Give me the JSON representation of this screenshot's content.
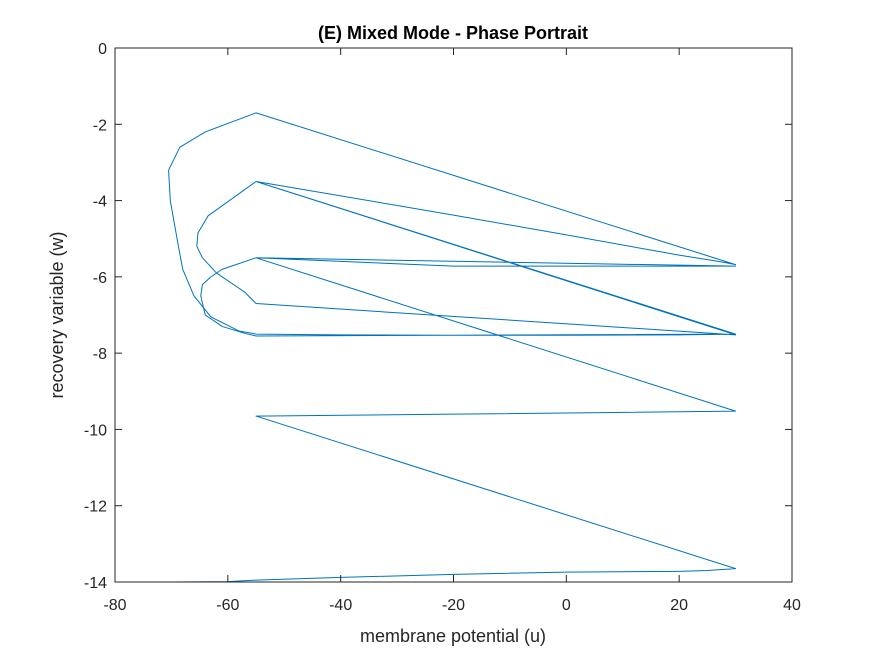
{
  "chart_data": {
    "type": "line",
    "title": "(E) Mixed Mode - Phase Portrait",
    "xlabel": "membrane potential (u)",
    "ylabel": "recovery variable (w)",
    "xlim": [
      -80,
      40
    ],
    "ylim": [
      -14,
      0
    ],
    "xticks": [
      "-80",
      "-60",
      "-40",
      "-20",
      "0",
      "20",
      "40"
    ],
    "yticks": [
      "0",
      "-2",
      "-4",
      "-6",
      "-8",
      "-10",
      "-12",
      "-14"
    ],
    "grid": false,
    "legend": "none",
    "series": [
      {
        "color": "#0072BD",
        "x": [
          -70,
          -60,
          -55,
          -40,
          -20,
          0,
          20,
          25,
          30,
          -55,
          -20,
          30,
          -55,
          -20,
          30,
          -55,
          -61,
          -63,
          -64.5,
          -64.8,
          -64,
          -61,
          -57,
          -55,
          30,
          -55,
          -63.5,
          -65.3,
          -65.5,
          -64.5,
          -62,
          -57,
          -55,
          30,
          -55,
          -20,
          0,
          20,
          28,
          30,
          -55,
          -64,
          -68.5,
          -70.5,
          -70.2,
          -69,
          -68,
          -66,
          -63,
          -58,
          -55,
          -40,
          -20,
          0,
          20,
          30,
          -55,
          30
        ],
        "y": [
          -14,
          -13.99,
          -13.95,
          -13.88,
          -13.8,
          -13.74,
          -13.72,
          -13.7,
          -13.65,
          -9.65,
          -9.6,
          -9.52,
          -5.5,
          -5.72,
          -5.72,
          -5.5,
          -5.8,
          -6.0,
          -6.2,
          -6.5,
          -7.0,
          -7.3,
          -7.48,
          -7.55,
          -7.5,
          -3.5,
          -4.4,
          -4.85,
          -5.2,
          -5.5,
          -5.9,
          -6.4,
          -6.7,
          -7.52,
          -3.5,
          -4.38,
          -4.9,
          -5.43,
          -5.62,
          -5.68,
          -1.7,
          -2.2,
          -2.6,
          -3.2,
          -4.0,
          -5.0,
          -5.8,
          -6.5,
          -7.05,
          -7.42,
          -7.5,
          -7.52,
          -7.53,
          -7.53,
          -7.52,
          -7.5,
          -3.5,
          -7.5
        ]
      }
    ]
  }
}
